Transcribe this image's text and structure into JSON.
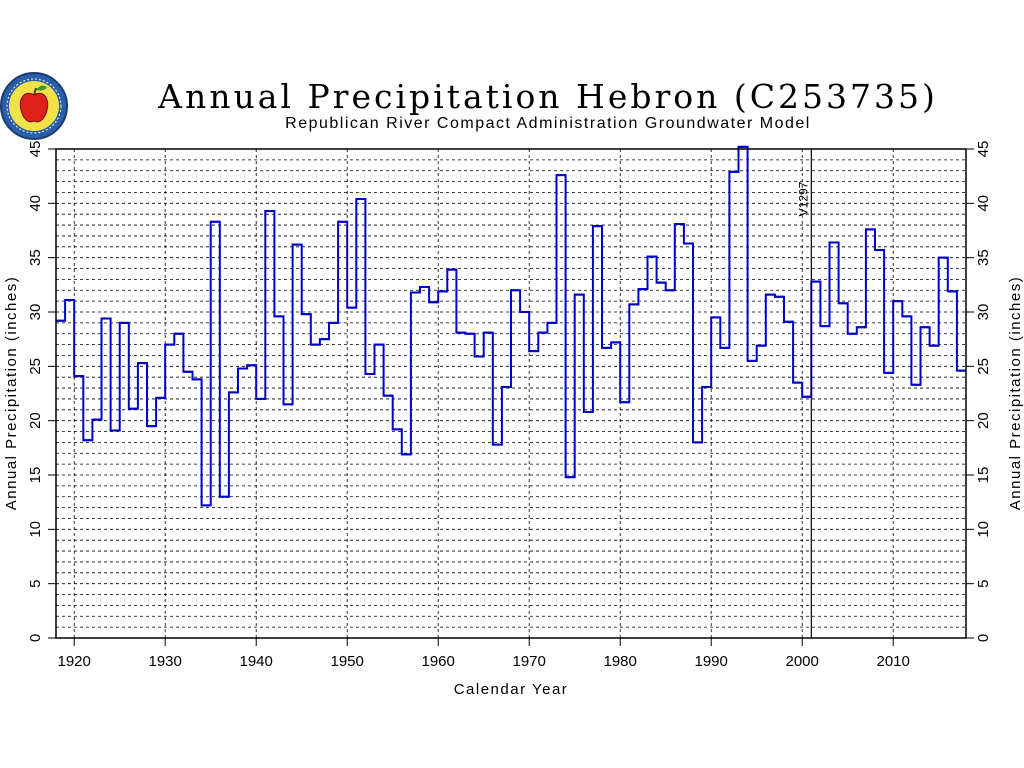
{
  "chart_data": {
    "type": "line",
    "step": true,
    "title": "Annual Precipitation Hebron (C253735)",
    "subtitle": "Republican River Compact Administration Groundwater Model",
    "xlabel": "Calendar Year",
    "ylabel": "Annual Precipitation (inches)",
    "ylabel_right": "Annual Precipitation (inches)",
    "xlim": [
      1918,
      2018
    ],
    "ylim": [
      0,
      45
    ],
    "x_ticks": [
      1920,
      1930,
      1940,
      1950,
      1960,
      1970,
      1980,
      1990,
      2000,
      2010
    ],
    "y_ticks": [
      0,
      5,
      10,
      15,
      20,
      25,
      30,
      35,
      40,
      45
    ],
    "grid": true,
    "line_color": "#0000c8",
    "annotation": {
      "text": "V1297",
      "x": 2001
    },
    "series": [
      {
        "x": [
          1918,
          1919,
          1920,
          1921,
          1922,
          1923,
          1924,
          1925,
          1926,
          1927,
          1928,
          1929,
          1930,
          1931,
          1932,
          1933,
          1934,
          1935,
          1936,
          1937,
          1938,
          1939,
          1940,
          1941,
          1942,
          1943,
          1944,
          1945,
          1946,
          1947,
          1948,
          1949,
          1950,
          1951,
          1952,
          1953,
          1954,
          1955,
          1956,
          1957,
          1958,
          1959,
          1960,
          1961,
          1962,
          1963,
          1964,
          1965,
          1966,
          1967,
          1968,
          1969,
          1970,
          1971,
          1972,
          1973,
          1974,
          1975,
          1976,
          1977,
          1978,
          1979,
          1980,
          1981,
          1982,
          1983,
          1984,
          1985,
          1986,
          1987,
          1988,
          1989,
          1990,
          1991,
          1992,
          1993,
          1994,
          1995,
          1996,
          1997,
          1998,
          1999,
          2000,
          2001,
          2002,
          2003,
          2004,
          2005,
          2006,
          2007,
          2008,
          2009,
          2010,
          2011,
          2012,
          2013,
          2014,
          2015,
          2016,
          2017
        ],
        "values": [
          29.2,
          31.1,
          24.1,
          18.2,
          20.1,
          29.4,
          19.1,
          29.0,
          21.1,
          25.3,
          19.5,
          22.1,
          27.0,
          28.0,
          24.5,
          23.8,
          12.2,
          38.3,
          13.0,
          22.6,
          24.8,
          25.1,
          22.0,
          39.3,
          29.6,
          21.5,
          36.2,
          29.8,
          27.0,
          27.5,
          29.0,
          38.3,
          30.4,
          40.4,
          24.3,
          27.0,
          22.3,
          19.2,
          16.9,
          31.8,
          32.3,
          30.9,
          31.9,
          33.9,
          28.1,
          28.0,
          25.9,
          28.1,
          17.8,
          23.1,
          32.0,
          30.0,
          26.4,
          28.1,
          29.0,
          42.6,
          14.8,
          31.6,
          20.8,
          37.9,
          26.7,
          27.2,
          21.7,
          30.7,
          32.1,
          35.1,
          32.7,
          32.0,
          38.1,
          36.3,
          18.0,
          23.1,
          29.5,
          26.7,
          42.9,
          45.2,
          25.5,
          26.9,
          31.6,
          31.4,
          29.1,
          23.5,
          22.2,
          32.8,
          28.7,
          36.4,
          30.8,
          28.0,
          28.6,
          37.6,
          35.7,
          24.4,
          31.0,
          29.6,
          23.3,
          28.6,
          26.9,
          35.0,
          31.9,
          24.6
        ]
      }
    ]
  }
}
